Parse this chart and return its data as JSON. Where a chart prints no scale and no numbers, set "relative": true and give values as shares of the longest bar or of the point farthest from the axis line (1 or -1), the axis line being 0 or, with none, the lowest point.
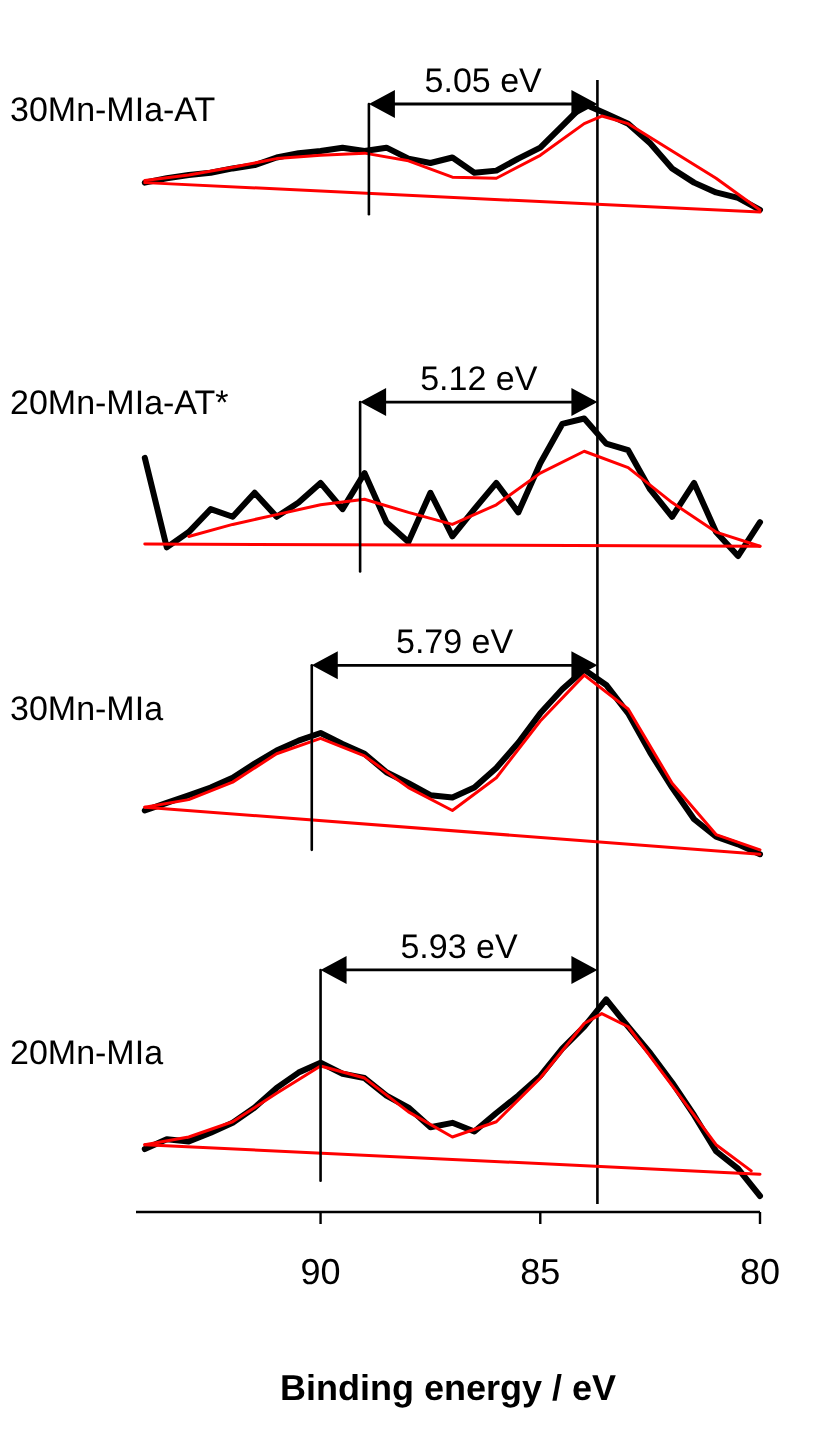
{
  "chart_data": {
    "type": "line",
    "relative": true,
    "xlabel": "Binding energy / eV",
    "xlim": [
      94.2,
      80
    ],
    "xticks": [
      90,
      85,
      80
    ],
    "legend": false,
    "line_style": "solid",
    "ref_lines": [
      {
        "axis": "x",
        "value": 83.7,
        "color": "#000000"
      }
    ],
    "annotations": [
      "5.05 eV",
      "5.12 eV",
      "5.79 eV",
      "5.93 eV"
    ],
    "x": [
      94,
      93.5,
      93,
      92.5,
      92,
      91.5,
      91,
      90.5,
      90,
      89.5,
      89,
      88.5,
      88,
      87.5,
      87,
      86.5,
      86,
      85.5,
      85,
      84.5,
      84,
      83.5,
      83,
      82.5,
      82,
      81.5,
      81,
      80.5,
      80
    ],
    "series": [
      {
        "name": "30Mn-MIa-AT",
        "color": "#000000",
        "values": [
          0.928,
          0.932,
          0.935,
          0.937,
          0.941,
          0.944,
          0.951,
          0.955,
          0.957,
          0.96,
          0.957,
          0.96,
          0.95,
          0.946,
          0.951,
          0.937,
          0.939,
          0.95,
          0.96,
          0.98,
          1.0,
          0.991,
          0.982,
          0.964,
          0.941,
          0.928,
          0.919,
          0.914,
          0.903
        ]
      },
      {
        "color": "#ff0000",
        "x": [
          94,
          93,
          92,
          91,
          90,
          89,
          88,
          87,
          86,
          85,
          84,
          83.6,
          83,
          82,
          81,
          80
        ],
        "values": [
          0.93,
          0.935,
          0.942,
          0.95,
          0.953,
          0.955,
          0.948,
          0.933,
          0.932,
          0.953,
          0.982,
          0.989,
          0.982,
          0.957,
          0.932,
          0.903
        ]
      },
      {
        "color": "#ff0000",
        "x": [
          94,
          80
        ],
        "values": [
          0.928,
          0.901
        ]
      },
      {
        "color": "#000000",
        "x": [
          88.9,
          88.9
        ],
        "values": [
          1.0,
          0.899
        ]
      },
      {
        "name": "20Mn-MIa-AT*",
        "color": "#000000",
        "values": [
          0.676,
          0.594,
          0.608,
          0.629,
          0.622,
          0.644,
          0.622,
          0.635,
          0.653,
          0.629,
          0.662,
          0.617,
          0.599,
          0.644,
          0.604,
          0.629,
          0.653,
          0.626,
          0.671,
          0.707,
          0.712,
          0.689,
          0.683,
          0.647,
          0.622,
          0.653,
          0.608,
          0.586,
          0.617
        ]
      },
      {
        "color": "#ff0000",
        "x": [
          93,
          92,
          91,
          90,
          89,
          88,
          87,
          86,
          85,
          84,
          83,
          82,
          81,
          80
        ],
        "values": [
          0.604,
          0.615,
          0.624,
          0.633,
          0.638,
          0.626,
          0.615,
          0.633,
          0.662,
          0.682,
          0.667,
          0.635,
          0.608,
          0.595
        ]
      },
      {
        "color": "#ff0000",
        "x": [
          94,
          80
        ],
        "values": [
          0.597,
          0.595
        ]
      },
      {
        "color": "#000000",
        "x": [
          89.1,
          89.1
        ],
        "values": [
          0.727,
          0.572
        ]
      },
      {
        "name": "30Mn-MIa",
        "color": "#000000",
        "values": [
          0.353,
          0.36,
          0.367,
          0.374,
          0.383,
          0.396,
          0.408,
          0.417,
          0.424,
          0.414,
          0.405,
          0.388,
          0.378,
          0.367,
          0.365,
          0.374,
          0.392,
          0.415,
          0.442,
          0.464,
          0.482,
          0.468,
          0.442,
          0.406,
          0.374,
          0.345,
          0.329,
          0.322,
          0.313
        ]
      },
      {
        "color": "#ff0000",
        "x": [
          94,
          93,
          92,
          91,
          90,
          89,
          88,
          87,
          86,
          85,
          84,
          83,
          82,
          81,
          80
        ],
        "values": [
          0.356,
          0.363,
          0.379,
          0.405,
          0.419,
          0.403,
          0.374,
          0.353,
          0.383,
          0.435,
          0.477,
          0.446,
          0.378,
          0.331,
          0.317
        ]
      },
      {
        "color": "#ff0000",
        "x": [
          94,
          80
        ],
        "values": [
          0.356,
          0.313
        ]
      },
      {
        "color": "#000000",
        "x": [
          90.2,
          90.2
        ],
        "values": [
          0.486,
          0.317
        ]
      },
      {
        "name": "20Mn-MIa",
        "color": "#000000",
        "values": [
          0.043,
          0.052,
          0.05,
          0.058,
          0.067,
          0.081,
          0.099,
          0.113,
          0.122,
          0.112,
          0.108,
          0.092,
          0.081,
          0.063,
          0.067,
          0.059,
          0.076,
          0.092,
          0.11,
          0.135,
          0.155,
          0.18,
          0.155,
          0.131,
          0.104,
          0.074,
          0.041,
          0.025,
          0
        ]
      },
      {
        "color": "#ff0000",
        "x": [
          94,
          93,
          92,
          91,
          90,
          89,
          88,
          87,
          86,
          85,
          84,
          83.6,
          83,
          82,
          81,
          80.2
        ],
        "values": [
          0.047,
          0.054,
          0.068,
          0.094,
          0.119,
          0.108,
          0.077,
          0.054,
          0.068,
          0.108,
          0.158,
          0.167,
          0.155,
          0.101,
          0.047,
          0.023
        ]
      },
      {
        "color": "#ff0000",
        "x": [
          94,
          80
        ],
        "values": [
          0.047,
          0.02
        ]
      },
      {
        "color": "#000000",
        "x": [
          90.0,
          90.0
        ],
        "values": [
          0.207,
          0.014
        ]
      }
    ]
  }
}
